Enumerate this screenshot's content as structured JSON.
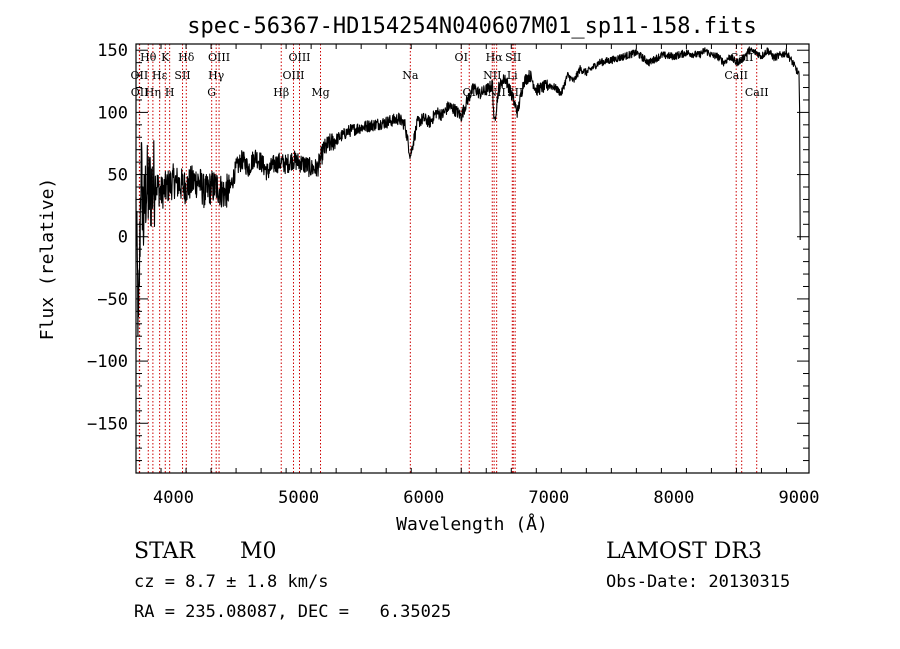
{
  "chart_data": {
    "type": "line",
    "title": "spec-56367-HD154254N040607M01_sp11-158.fits",
    "xlabel": "Wavelength (Å)",
    "ylabel": "Flux (relative)",
    "xlim": [
      3700,
      9080
    ],
    "ylim": [
      -190,
      155
    ],
    "xticks": [
      4000,
      5000,
      6000,
      7000,
      8000,
      9000
    ],
    "yticks": [
      -150,
      -100,
      -50,
      0,
      50,
      100,
      150
    ],
    "grid": false,
    "legend": "none",
    "line_color": "#000000",
    "marker_color": "#cc0000",
    "series": [
      {
        "values_x": [
          3700,
          3720,
          3740,
          3760,
          3780,
          3800,
          3850,
          3900,
          3950,
          4000,
          4050,
          4100,
          4150,
          4200,
          4250,
          4300,
          4350,
          4400,
          4450,
          4500,
          4550,
          4600,
          4650,
          4700,
          4750,
          4800,
          4850,
          4900,
          4950,
          5000,
          5050,
          5100,
          5150,
          5200,
          5250,
          5300,
          5400,
          5500,
          5600,
          5700,
          5800,
          5850,
          5893,
          5950,
          6000,
          6050,
          6100,
          6150,
          6200,
          6250,
          6300,
          6350,
          6400,
          6450,
          6500,
          6550,
          6563,
          6600,
          6650,
          6700,
          6750,
          6800,
          6850,
          6900,
          6950,
          7000,
          7050,
          7100,
          7150,
          7200,
          7250,
          7300,
          7400,
          7500,
          7600,
          7700,
          7800,
          7900,
          8000,
          8100,
          8200,
          8250,
          8300,
          8350,
          8400,
          8450,
          8498,
          8542,
          8600,
          8662,
          8700,
          8750,
          8800,
          8850,
          8900,
          8950,
          9000,
          9005,
          9010
        ],
        "values_y": [
          20,
          -80,
          60,
          10,
          40,
          35,
          45,
          35,
          40,
          45,
          42,
          40,
          44,
          45,
          35,
          40,
          40,
          35,
          38,
          55,
          62,
          55,
          65,
          60,
          52,
          58,
          60,
          58,
          62,
          60,
          58,
          55,
          55,
          70,
          75,
          78,
          85,
          88,
          90,
          92,
          95,
          90,
          65,
          92,
          95,
          92,
          100,
          98,
          105,
          102,
          97,
          110,
          120,
          115,
          118,
          122,
          90,
          120,
          128,
          115,
          100,
          125,
          130,
          118,
          120,
          122,
          120,
          115,
          130,
          125,
          135,
          132,
          140,
          142,
          145,
          148,
          140,
          146,
          145,
          148,
          146,
          150,
          146,
          145,
          140,
          145,
          140,
          142,
          150,
          148,
          145,
          150,
          144,
          146,
          148,
          140,
          130,
          100,
          0
        ]
      }
    ],
    "lines": [
      {
        "name": "Hθ",
        "wl": 3798,
        "row": 0
      },
      {
        "name": "OII",
        "wl": 3727,
        "row": 1
      },
      {
        "name": "OII",
        "wl": 3729,
        "row": 2
      },
      {
        "name": "Hη",
        "wl": 3835,
        "row": 2
      },
      {
        "name": "Hε",
        "wl": 3889,
        "row": 1
      },
      {
        "name": "K",
        "wl": 3934,
        "row": 0
      },
      {
        "name": "H",
        "wl": 3969,
        "row": 2
      },
      {
        "name": "SII",
        "wl": 4072,
        "row": 1
      },
      {
        "name": "Hδ",
        "wl": 4102,
        "row": 0
      },
      {
        "name": "G",
        "wl": 4305,
        "row": 2
      },
      {
        "name": "Hγ",
        "wl": 4341,
        "row": 1
      },
      {
        "name": "OIII",
        "wl": 4364,
        "row": 0
      },
      {
        "name": "Hβ",
        "wl": 4861,
        "row": 2
      },
      {
        "name": "OIII",
        "wl": 4959,
        "row": 1
      },
      {
        "name": "OIII",
        "wl": 5007,
        "row": 0
      },
      {
        "name": "Mg",
        "wl": 5175,
        "row": 2
      },
      {
        "name": "Na",
        "wl": 5893,
        "row": 1
      },
      {
        "name": "OI",
        "wl": 6300,
        "row": 0
      },
      {
        "name": "OI",
        "wl": 6364,
        "row": 2
      },
      {
        "name": "NII",
        "wl": 6548,
        "row": 1
      },
      {
        "name": "Hα",
        "wl": 6563,
        "row": 0
      },
      {
        "name": "NII",
        "wl": 6583,
        "row": 2
      },
      {
        "name": "Li",
        "wl": 6708,
        "row": 1
      },
      {
        "name": "SII",
        "wl": 6716,
        "row": 0
      },
      {
        "name": "SII",
        "wl": 6731,
        "row": 2
      },
      {
        "name": "CaII",
        "wl": 8498,
        "row": 1
      },
      {
        "name": "CaII",
        "wl": 8542,
        "row": 0
      },
      {
        "name": "CaII",
        "wl": 8662,
        "row": 2
      }
    ]
  },
  "info": {
    "class_label": "STAR",
    "subclass_label": "M0",
    "survey_label": "LAMOST DR3",
    "redshift_text": "cz = 8.7 ± 1.8 km/s",
    "obs_date_text": "Obs-Date: 20130315",
    "coords_text": "RA = 235.08087, DEC =   6.35025"
  }
}
